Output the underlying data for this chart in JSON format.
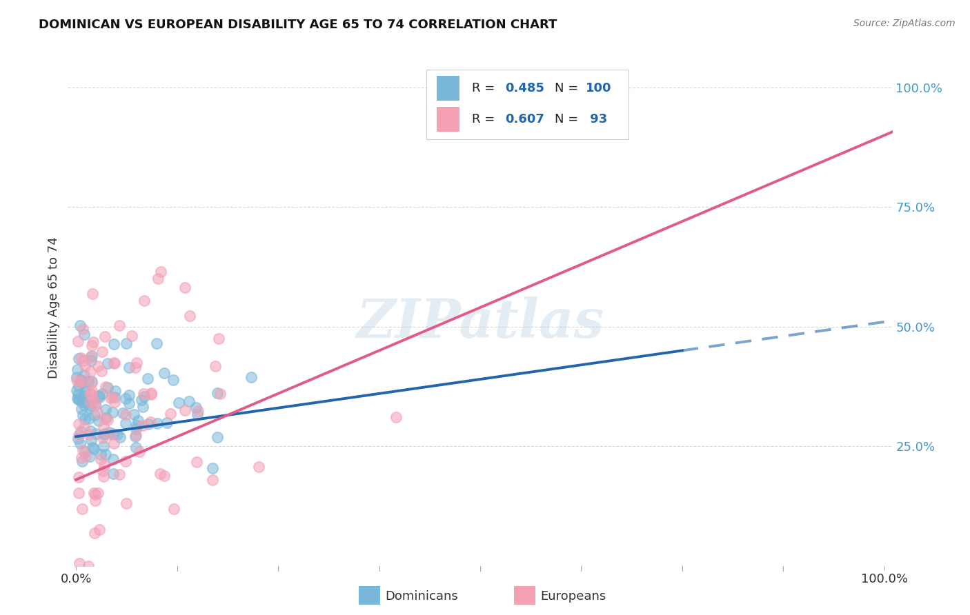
{
  "title": "DOMINICAN VS EUROPEAN DISABILITY AGE 65 TO 74 CORRELATION CHART",
  "source": "Source: ZipAtlas.com",
  "ylabel": "Disability Age 65 to 74",
  "dominican_color": "#7ab8d9",
  "european_color": "#f4a0b5",
  "dominican_line_color": "#2166ac",
  "european_line_color": "#e05a8a",
  "r_dominican": 0.485,
  "n_dominican": 100,
  "r_european": 0.607,
  "n_european": 93,
  "watermark": "ZIPatlas",
  "background_color": "#ffffff",
  "grid_color": "#cccccc",
  "legend_text_color": "#2166ac",
  "ytick_color": "#4499cc"
}
